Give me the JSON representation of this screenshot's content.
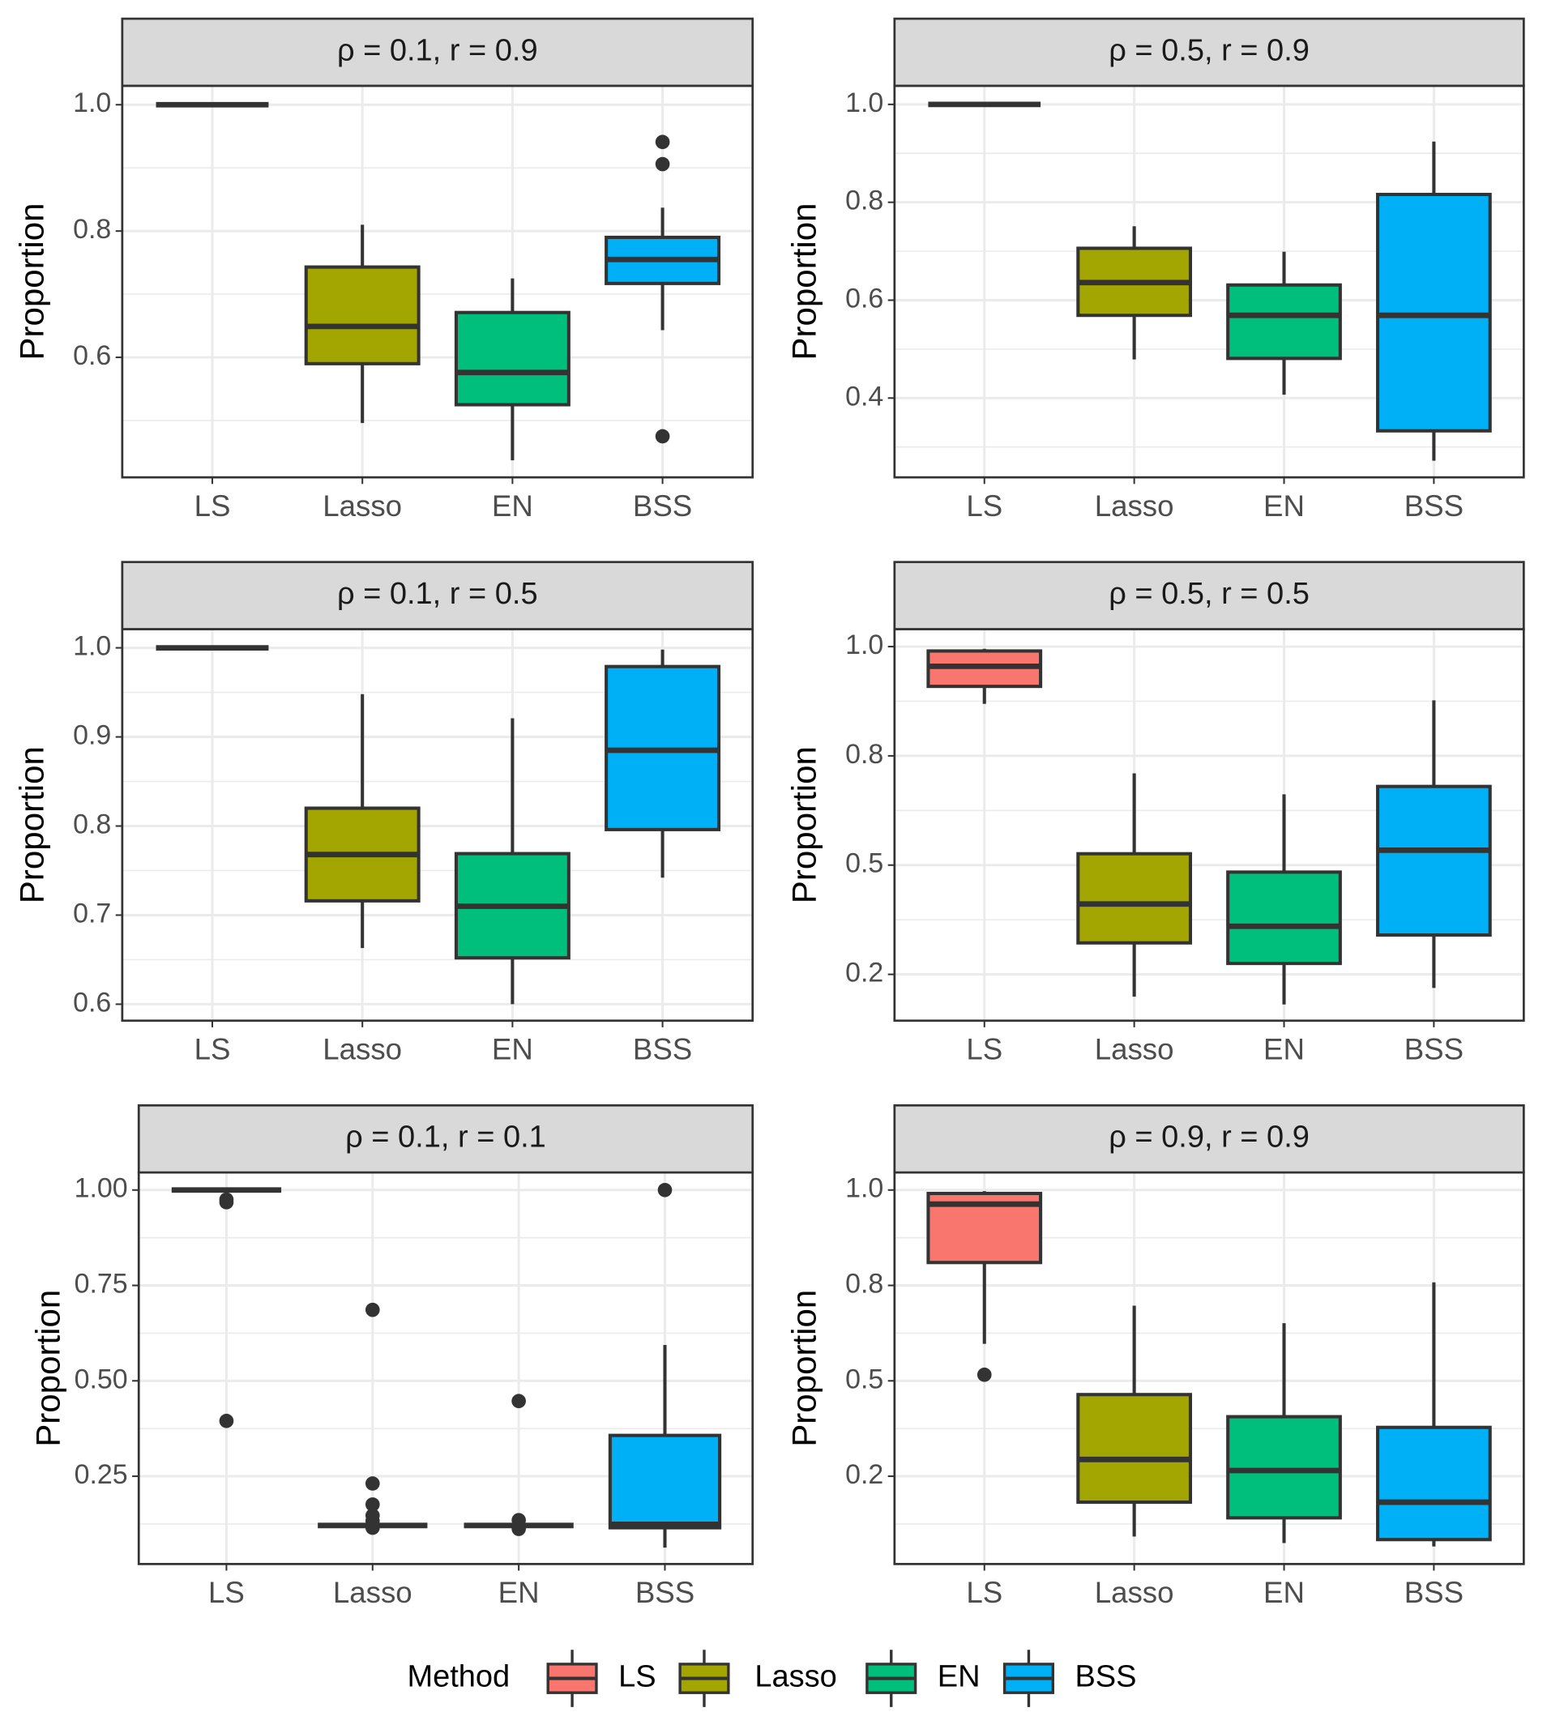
{
  "chart_data": [
    {
      "type": "box",
      "title": "ρ = 0.1,  r = 0.9",
      "ylabel": "Proportion",
      "categories": [
        "LS",
        "Lasso",
        "EN",
        "BSS"
      ],
      "boxes": [
        {
          "min": 1,
          "q1": 1,
          "median": 1,
          "q3": 1,
          "max": 1
        },
        {
          "min": 0.496,
          "q1": 0.59,
          "median": 0.649,
          "q3": 0.743,
          "max": 0.81
        },
        {
          "min": 0.437,
          "q1": 0.525,
          "median": 0.576,
          "q3": 0.671,
          "max": 0.725
        },
        {
          "min": 0.643,
          "q1": 0.717,
          "median": 0.755,
          "q3": 0.79,
          "max": 0.837,
          "outliers": [
            0.941,
            0.906,
            0.475
          ]
        }
      ],
      "ylim": [
        0.41,
        1.03
      ],
      "yticks": [
        0.6,
        0.8,
        {
          "value": 1,
          "label": "1.0"
        }
      ],
      "yminor": [
        0.5,
        0.7,
        0.9
      ]
    },
    {
      "type": "box",
      "title": "ρ = 0.5,  r = 0.9",
      "ylabel": "Proportion",
      "categories": [
        "LS",
        "Lasso",
        "EN",
        "BSS"
      ],
      "boxes": [
        {
          "min": 1,
          "q1": 1,
          "median": 1,
          "q3": 1,
          "max": 1
        },
        {
          "min": 0.479,
          "q1": 0.569,
          "median": 0.636,
          "q3": 0.706,
          "max": 0.751
        },
        {
          "min": 0.407,
          "q1": 0.481,
          "median": 0.569,
          "q3": 0.631,
          "max": 0.699
        },
        {
          "min": 0.272,
          "q1": 0.333,
          "median": 0.569,
          "q3": 0.816,
          "max": 0.924
        }
      ],
      "ylim": [
        0.238,
        1.038
      ],
      "yticks": [
        0.4,
        0.6,
        0.8,
        {
          "value": 1,
          "label": "1.0"
        }
      ],
      "yminor": [
        0.3,
        0.5,
        0.7,
        0.9
      ]
    },
    {
      "type": "box",
      "title": "ρ = 0.1,  r = 0.5",
      "ylabel": "Proportion",
      "categories": [
        "LS",
        "Lasso",
        "EN",
        "BSS"
      ],
      "boxes": [
        {
          "min": 1,
          "q1": 1,
          "median": 1,
          "q3": 1,
          "max": 1
        },
        {
          "min": 0.663,
          "q1": 0.716,
          "median": 0.768,
          "q3": 0.82,
          "max": 0.948
        },
        {
          "min": 0.6,
          "q1": 0.652,
          "median": 0.71,
          "q3": 0.769,
          "max": 0.921
        },
        {
          "min": 0.742,
          "q1": 0.796,
          "median": 0.885,
          "q3": 0.979,
          "max": 0.998
        }
      ],
      "ylim": [
        0.5815,
        1.021
      ],
      "yticks": [
        0.6,
        0.7,
        0.8,
        0.9,
        {
          "value": 1,
          "label": "1.0"
        }
      ],
      "yminor": [
        0.65,
        0.75,
        0.85,
        0.95
      ]
    },
    {
      "type": "box",
      "title": "ρ = 0.5,  r = 0.5",
      "ylabel": "Proportion",
      "categories": [
        "LS",
        "Lasso",
        "EN",
        "BSS"
      ],
      "boxes": [
        {
          "min": 0.869,
          "q1": 0.909,
          "median": 0.955,
          "q3": 0.99,
          "max": 0.995
        },
        {
          "min": 0.199,
          "q1": 0.322,
          "median": 0.411,
          "q3": 0.526,
          "max": 0.71
        },
        {
          "min": 0.181,
          "q1": 0.275,
          "median": 0.36,
          "q3": 0.484,
          "max": 0.662
        },
        {
          "min": 0.219,
          "q1": 0.34,
          "median": 0.534,
          "q3": 0.68,
          "max": 0.877
        }
      ],
      "ylim": [
        0.144,
        1.04
      ],
      "yticks": [
        {
          "value": 0.25,
          "label": "0.2"
        },
        0.5,
        {
          "value": 0.75,
          "label": "0.8"
        },
        {
          "value": 1,
          "label": "1.0"
        }
      ],
      "yminor": [
        0.375,
        0.625,
        0.875
      ]
    },
    {
      "type": "box",
      "title": "ρ = 0.1,  r = 0.1",
      "ylabel": "Proportion",
      "categories": [
        "LS",
        "Lasso",
        "EN",
        "BSS"
      ],
      "boxes": [
        {
          "min": 1,
          "q1": 1,
          "median": 1,
          "q3": 1,
          "max": 1,
          "outliers": [
            0.975,
            0.968,
            0.395
          ]
        },
        {
          "min": 0.121,
          "q1": 0.121,
          "median": 0.121,
          "q3": 0.121,
          "max": 0.121,
          "outliers": [
            0.686,
            0.231,
            0.176,
            0.147,
            0.133,
            0.115
          ]
        },
        {
          "min": 0.121,
          "q1": 0.121,
          "median": 0.121,
          "q3": 0.121,
          "max": 0.121,
          "outliers": [
            0.447,
            0.135,
            0.112
          ]
        },
        {
          "min": 0.063,
          "q1": 0.115,
          "median": 0.124,
          "q3": 0.357,
          "max": 0.594,
          "outliers": [
            1
          ]
        }
      ],
      "ylim": [
        0.02,
        1.046
      ],
      "yticks": [
        0.25,
        {
          "value": 0.5,
          "label": "0.50"
        },
        0.75,
        {
          "value": 1,
          "label": "1.00"
        }
      ],
      "yminor": [
        0.125,
        0.375,
        0.625,
        0.875
      ]
    },
    {
      "type": "box",
      "title": "ρ = 0.9,  r = 0.9",
      "ylabel": "Proportion",
      "categories": [
        "LS",
        "Lasso",
        "EN",
        "BSS"
      ],
      "boxes": [
        {
          "min": 0.597,
          "q1": 0.81,
          "median": 0.963,
          "q3": 0.991,
          "max": 0.997,
          "outliers": [
            0.516
          ]
        },
        {
          "min": 0.092,
          "q1": 0.182,
          "median": 0.294,
          "q3": 0.464,
          "max": 0.697
        },
        {
          "min": 0.075,
          "q1": 0.141,
          "median": 0.265,
          "q3": 0.406,
          "max": 0.651
        },
        {
          "min": 0.066,
          "q1": 0.084,
          "median": 0.182,
          "q3": 0.378,
          "max": 0.758
        }
      ],
      "ylim": [
        0.02,
        1.046
      ],
      "yticks": [
        {
          "value": 0.25,
          "label": "0.2"
        },
        0.5,
        {
          "value": 0.75,
          "label": "0.8"
        },
        {
          "value": 1,
          "label": "1.0"
        }
      ],
      "yminor": [
        0.125,
        0.375,
        0.625,
        0.875
      ]
    }
  ],
  "legend": {
    "title": "Method",
    "items": [
      "LS",
      "Lasso",
      "EN",
      "BSS"
    ],
    "colors": [
      "#F8766D",
      "#A3A500",
      "#00BF7D",
      "#00B0F6"
    ]
  }
}
